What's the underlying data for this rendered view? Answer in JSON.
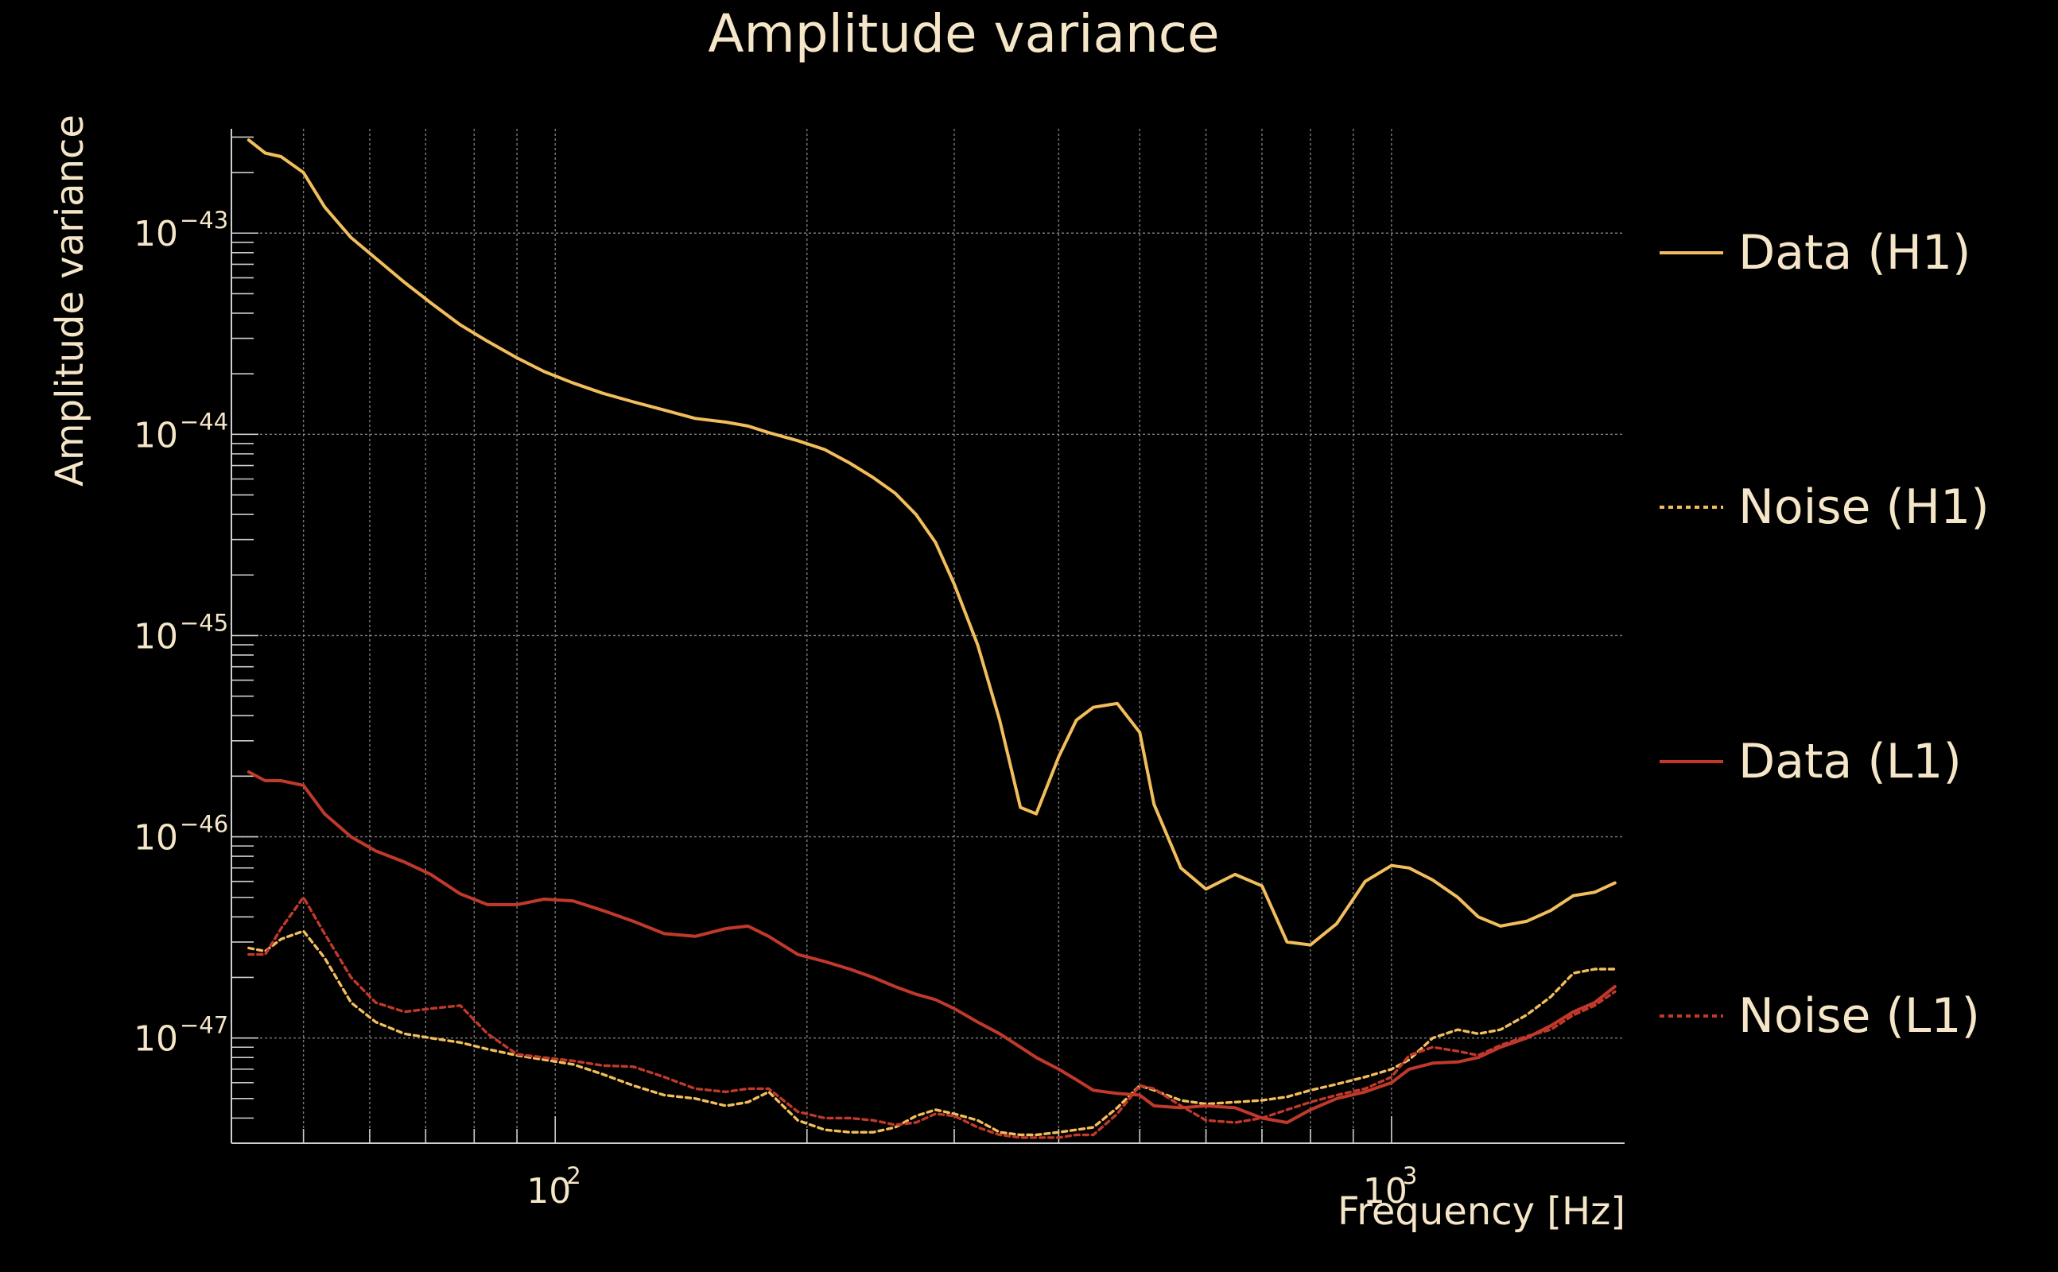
{
  "chart_data": {
    "type": "line",
    "title": "Amplitude variance",
    "xlabel": "Frequency [Hz]",
    "ylabel": "Amplitude variance",
    "x_scale": "log",
    "y_scale": "log",
    "xlim": [
      41,
      1900
    ],
    "ylim": [
      3e-48,
      3.3e-43
    ],
    "grid": true,
    "legend_position": "right",
    "background": "#000000",
    "text_color": "#f5e6c8",
    "x_ticks": [
      {
        "value": 100,
        "base": "10",
        "exp": "2"
      },
      {
        "value": 1000,
        "base": "10",
        "exp": "3"
      }
    ],
    "y_ticks": [
      {
        "value": 1e-43,
        "base": "10",
        "exp": "−43"
      },
      {
        "value": 1e-44,
        "base": "10",
        "exp": "−44"
      },
      {
        "value": 1e-45,
        "base": "10",
        "exp": "−45"
      },
      {
        "value": 1e-46,
        "base": "10",
        "exp": "−46"
      },
      {
        "value": 1e-47,
        "base": "10",
        "exp": "−47"
      }
    ],
    "series": [
      {
        "name": "Data (H1)",
        "color": "#f2bd5c",
        "dash": "solid",
        "x": [
          43,
          45,
          47,
          50,
          53,
          57,
          61,
          66,
          71,
          77,
          83,
          90,
          97,
          105,
          114,
          124,
          135,
          147,
          160,
          170,
          180,
          195,
          210,
          225,
          240,
          255,
          270,
          285,
          300,
          320,
          340,
          360,
          376,
          400,
          420,
          440,
          470,
          500,
          520,
          560,
          600,
          650,
          700,
          750,
          800,
          860,
          930,
          1000,
          1050,
          1120,
          1200,
          1270,
          1350,
          1450,
          1550,
          1650,
          1750,
          1850
        ],
        "y": [
          2.9e-43,
          2.5e-43,
          2.4e-43,
          2e-43,
          1.35e-43,
          9.5e-44,
          7.5e-44,
          5.7e-44,
          4.5e-44,
          3.5e-44,
          2.9e-44,
          2.4e-44,
          2.05e-44,
          1.8e-44,
          1.6e-44,
          1.45e-44,
          1.32e-44,
          1.2e-44,
          1.15e-44,
          1.1e-44,
          1.02e-44,
          9.3e-45,
          8.4e-45,
          7.2e-45,
          6.1e-45,
          5.1e-45,
          4e-45,
          2.9e-45,
          1.8e-45,
          9e-46,
          3.8e-46,
          1.4e-46,
          1.3e-46,
          2.5e-46,
          3.8e-46,
          4.4e-46,
          4.6e-46,
          3.3e-46,
          1.45e-46,
          7e-47,
          5.5e-47,
          6.5e-47,
          5.7e-47,
          3e-47,
          2.9e-47,
          3.7e-47,
          6e-47,
          7.2e-47,
          7e-47,
          6.1e-47,
          5e-47,
          4e-47,
          3.6e-47,
          3.8e-47,
          4.3e-47,
          5.1e-47,
          5.3e-47,
          5.9e-47
        ]
      },
      {
        "name": "Noise (H1)",
        "color": "#f2bd5c",
        "dash": "dotted",
        "x": [
          43,
          45,
          47,
          50,
          53,
          57,
          61,
          66,
          71,
          77,
          83,
          90,
          97,
          105,
          114,
          124,
          135,
          147,
          160,
          170,
          180,
          195,
          210,
          225,
          240,
          255,
          270,
          285,
          300,
          320,
          340,
          360,
          376,
          400,
          420,
          440,
          470,
          500,
          520,
          560,
          600,
          650,
          700,
          750,
          800,
          860,
          930,
          1000,
          1050,
          1120,
          1200,
          1270,
          1350,
          1450,
          1550,
          1650,
          1750,
          1850
        ],
        "y": [
          2.8e-47,
          2.7e-47,
          3.1e-47,
          3.4e-47,
          2.5e-47,
          1.5e-47,
          1.2e-47,
          1.05e-47,
          1e-47,
          9.5e-48,
          8.8e-48,
          8.2e-48,
          7.8e-48,
          7.4e-48,
          6.6e-48,
          5.8e-48,
          5.2e-48,
          5e-48,
          4.6e-48,
          4.8e-48,
          5.4e-48,
          3.9e-48,
          3.5e-48,
          3.4e-48,
          3.4e-48,
          3.6e-48,
          4.1e-48,
          4.4e-48,
          4.2e-48,
          3.9e-48,
          3.4e-48,
          3.3e-48,
          3.3e-48,
          3.4e-48,
          3.5e-48,
          3.6e-48,
          4.5e-48,
          5.8e-48,
          5.5e-48,
          4.9e-48,
          4.7e-48,
          4.8e-48,
          4.9e-48,
          5.1e-48,
          5.5e-48,
          5.9e-48,
          6.4e-48,
          7e-48,
          7.8e-48,
          1e-47,
          1.1e-47,
          1.05e-47,
          1.1e-47,
          1.3e-47,
          1.6e-47,
          2.1e-47,
          2.2e-47,
          2.2e-47
        ]
      },
      {
        "name": "Data (L1)",
        "color": "#c0392b",
        "dash": "solid",
        "x": [
          43,
          45,
          47,
          50,
          53,
          57,
          61,
          66,
          71,
          77,
          83,
          90,
          97,
          105,
          114,
          124,
          135,
          147,
          160,
          170,
          180,
          195,
          210,
          225,
          240,
          255,
          270,
          285,
          300,
          320,
          340,
          360,
          376,
          400,
          420,
          440,
          470,
          500,
          520,
          560,
          600,
          650,
          700,
          750,
          800,
          860,
          930,
          1000,
          1050,
          1120,
          1200,
          1270,
          1350,
          1450,
          1550,
          1650,
          1750,
          1850
        ],
        "y": [
          2.1e-46,
          1.9e-46,
          1.9e-46,
          1.8e-46,
          1.3e-46,
          1e-46,
          8.5e-47,
          7.5e-47,
          6.5e-47,
          5.2e-47,
          4.6e-47,
          4.6e-47,
          4.9e-47,
          4.8e-47,
          4.3e-47,
          3.8e-47,
          3.3e-47,
          3.2e-47,
          3.5e-47,
          3.6e-47,
          3.2e-47,
          2.6e-47,
          2.4e-47,
          2.2e-47,
          2e-47,
          1.8e-47,
          1.65e-47,
          1.55e-47,
          1.4e-47,
          1.2e-47,
          1.05e-47,
          9e-48,
          8e-48,
          7e-48,
          6.2e-48,
          5.5e-48,
          5.3e-48,
          5.2e-48,
          4.6e-48,
          4.5e-48,
          4.6e-48,
          4.5e-48,
          4e-48,
          3.8e-48,
          4.4e-48,
          5e-48,
          5.4e-48,
          6e-48,
          7e-48,
          7.5e-48,
          7.6e-48,
          8e-48,
          9e-48,
          1e-47,
          1.15e-47,
          1.35e-47,
          1.5e-47,
          1.8e-47
        ]
      },
      {
        "name": "Noise (L1)",
        "color": "#c0392b",
        "dash": "dotted",
        "x": [
          43,
          45,
          47,
          50,
          53,
          57,
          61,
          66,
          71,
          77,
          83,
          90,
          97,
          105,
          114,
          124,
          135,
          147,
          160,
          170,
          180,
          195,
          210,
          225,
          240,
          255,
          270,
          285,
          300,
          320,
          340,
          360,
          376,
          400,
          420,
          440,
          470,
          500,
          520,
          560,
          600,
          650,
          700,
          750,
          800,
          860,
          930,
          1000,
          1050,
          1120,
          1200,
          1270,
          1350,
          1450,
          1550,
          1650,
          1750,
          1850
        ],
        "y": [
          2.6e-47,
          2.6e-47,
          3.5e-47,
          5e-47,
          3.3e-47,
          2e-47,
          1.5e-47,
          1.35e-47,
          1.4e-47,
          1.45e-47,
          1.05e-47,
          8.3e-48,
          8e-48,
          7.7e-48,
          7.3e-48,
          7.2e-48,
          6.4e-48,
          5.6e-48,
          5.4e-48,
          5.6e-48,
          5.6e-48,
          4.3e-48,
          4e-48,
          4e-48,
          3.9e-48,
          3.7e-48,
          3.8e-48,
          4.2e-48,
          4.1e-48,
          3.6e-48,
          3.3e-48,
          3.2e-48,
          3.2e-48,
          3.2e-48,
          3.3e-48,
          3.3e-48,
          4.2e-48,
          5.8e-48,
          5.6e-48,
          4.6e-48,
          3.9e-48,
          3.8e-48,
          4e-48,
          4.4e-48,
          4.8e-48,
          5.2e-48,
          5.6e-48,
          6.4e-48,
          8.2e-48,
          9e-48,
          8.6e-48,
          8.2e-48,
          9.2e-48,
          1.02e-47,
          1.1e-47,
          1.3e-47,
          1.45e-47,
          1.7e-47
        ]
      }
    ]
  }
}
